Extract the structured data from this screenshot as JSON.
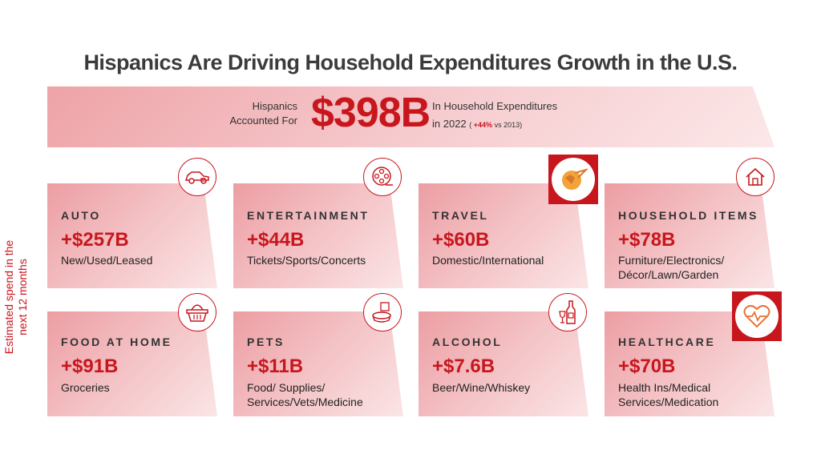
{
  "title": "Hispanics Are Driving Household Expenditures Growth in the U.S.",
  "banner": {
    "pre_line1": "Hispanics",
    "pre_line2": "Accounted For",
    "amount": "$398B",
    "post_line1": "In Household Expenditures",
    "post_year": "in 2022",
    "post_open": "( ",
    "post_pct": "+44%",
    "post_close": " vs 2013)"
  },
  "side_label": {
    "line1": "Estimated spend in the",
    "line2": "next 12 months"
  },
  "cards": [
    {
      "category": "AUTO",
      "value": "+$257B",
      "desc1": "New/Used/Leased",
      "desc2": "",
      "icon": "car-icon"
    },
    {
      "category": "ENTERTAINMENT",
      "value": "+$44B",
      "desc1": "Tickets/Sports/Concerts",
      "desc2": "",
      "icon": "film-reel-icon"
    },
    {
      "category": "TRAVEL",
      "value": "+$60B",
      "desc1": "Domestic/International",
      "desc2": "",
      "icon": "globe-plane-icon"
    },
    {
      "category": "HOUSEHOLD ITEMS",
      "value": "+$78B",
      "desc1": "Furniture/Electronics/",
      "desc2": "Décor/Lawn/Garden",
      "icon": "house-icon"
    },
    {
      "category": "FOOD AT HOME",
      "value": "+$91B",
      "desc1": "Groceries",
      "desc2": "",
      "icon": "basket-icon"
    },
    {
      "category": "PETS",
      "value": "+$11B",
      "desc1": "Food/ Supplies/",
      "desc2": "Services/Vets/Medicine",
      "icon": "pet-bowl-icon"
    },
    {
      "category": "ALCOHOL",
      "value": "+$7.6B",
      "desc1": "Beer/Wine/Whiskey",
      "desc2": "",
      "icon": "bottle-glass-icon"
    },
    {
      "category": "HEALTHCARE",
      "value": "+$70B",
      "desc1": "Health Ins/Medical",
      "desc2": "Services/Medication",
      "icon": "heart-pulse-icon"
    }
  ],
  "colors": {
    "accent": "#c8161d",
    "card_dark": "#ec9ea3",
    "card_light": "#fbe5e6",
    "title": "#3b3b3b"
  }
}
